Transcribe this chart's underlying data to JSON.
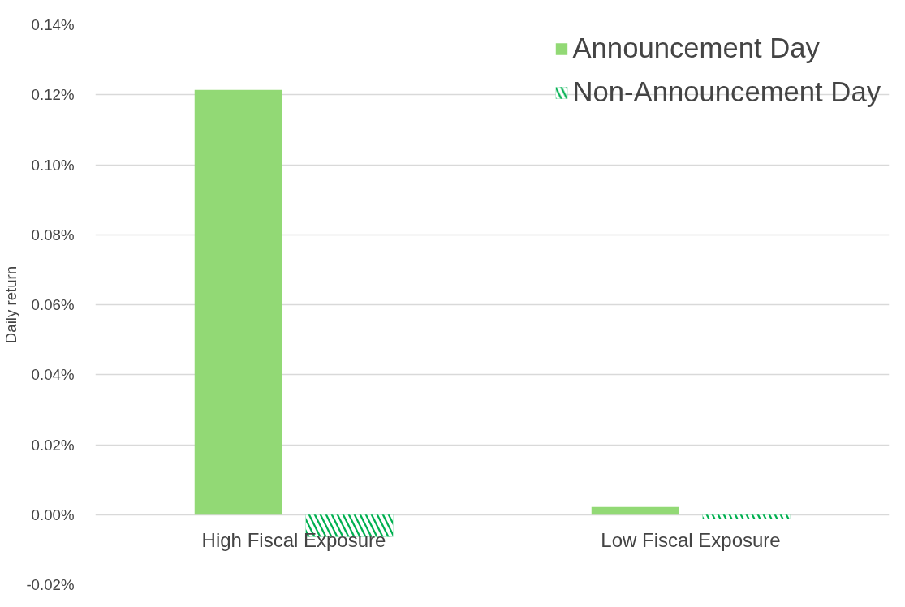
{
  "chart_data": {
    "type": "bar",
    "ylabel": "Daily return",
    "categories": [
      "High Fiscal Exposure",
      "Low Fiscal Exposure"
    ],
    "series": [
      {
        "name": "Announcement Day",
        "color": "#92d975",
        "values": [
          0.1214,
          0.0022
        ]
      },
      {
        "name": "Non-Announcement Day",
        "color": "#00b050",
        "values": [
          -0.0063,
          -0.0012
        ]
      }
    ],
    "ylim": [
      -0.02,
      0.14
    ],
    "yticks": [
      {
        "value": -0.02,
        "label": "-0.02%"
      },
      {
        "value": 0,
        "label": "0.00%"
      },
      {
        "value": 0.02,
        "label": "0.02%"
      },
      {
        "value": 0.04,
        "label": "0.04%"
      },
      {
        "value": 0.06,
        "label": "0.06%"
      },
      {
        "value": 0.08,
        "label": "0.08%"
      },
      {
        "value": 0.1,
        "label": "0.10%"
      },
      {
        "value": 0.12,
        "label": "0.12%"
      },
      {
        "value": 0.14,
        "label": "0.14%"
      }
    ],
    "grid": "y",
    "legend": "top right"
  }
}
